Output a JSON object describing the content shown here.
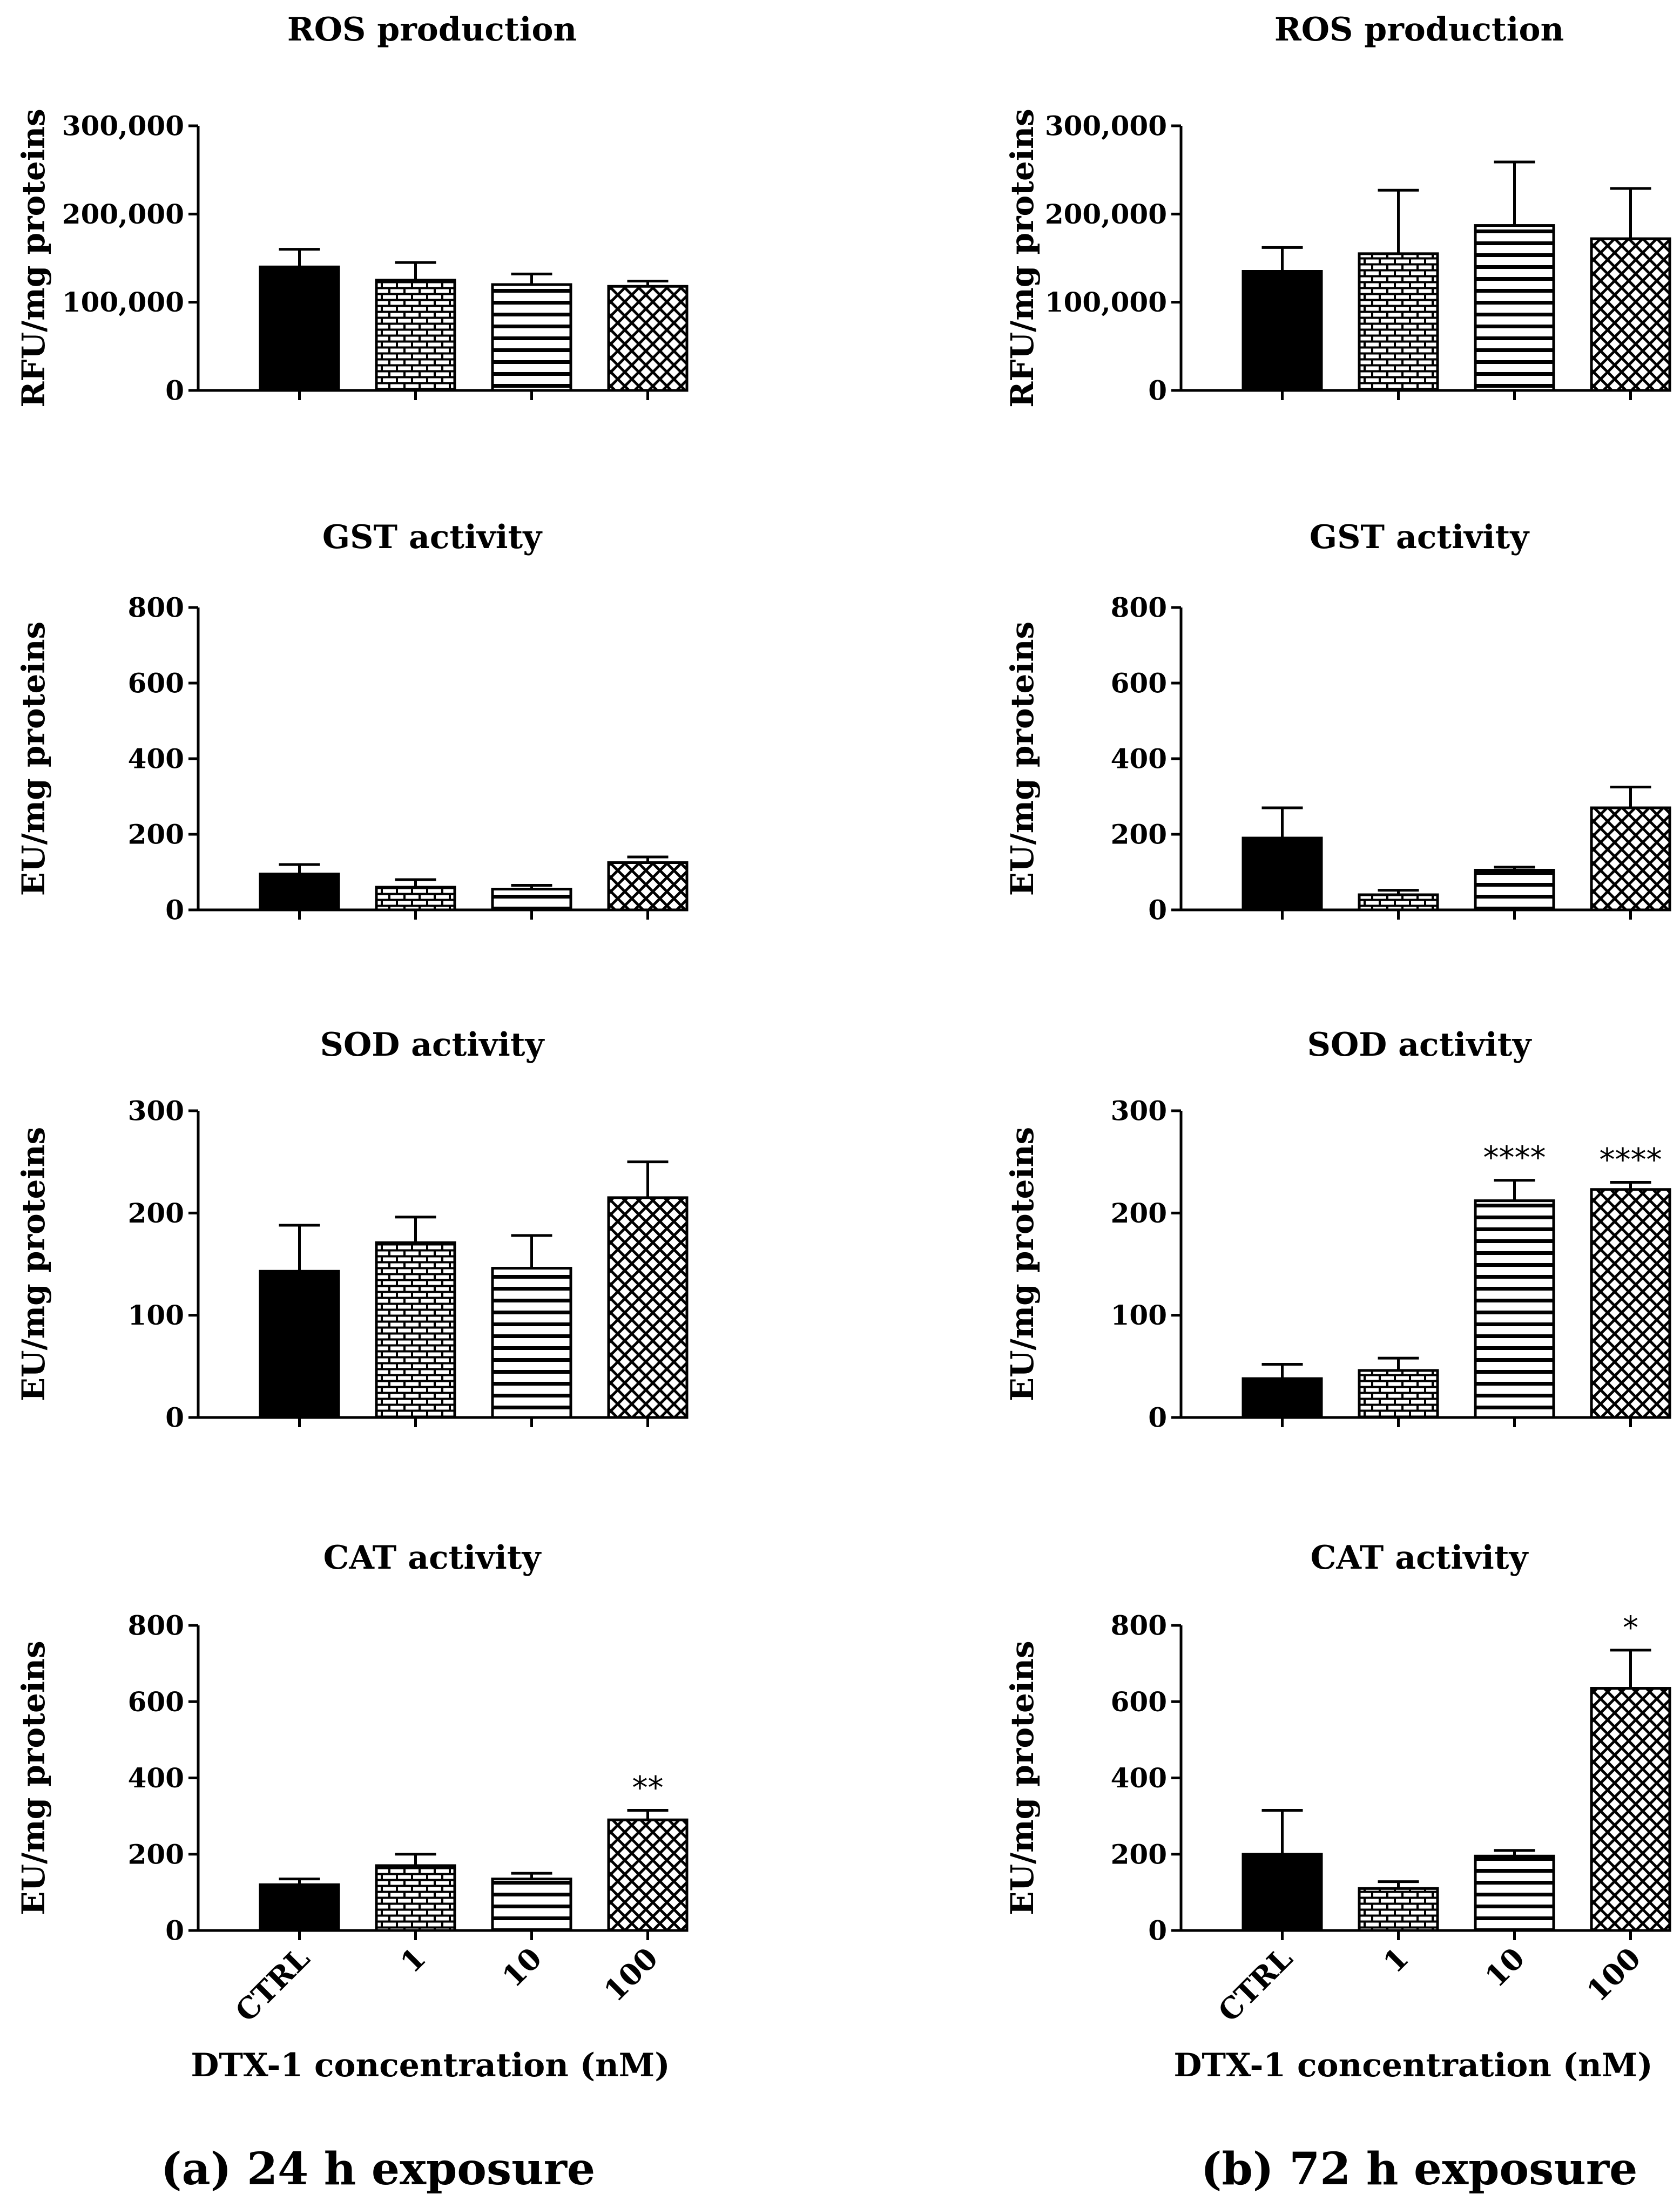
{
  "figure": {
    "panel_a_caption": "(a) 24 h exposure",
    "panel_b_caption": "(b) 72 h exposure"
  },
  "colors": {
    "bar_stroke": "#000000",
    "bar_fill": "#000000",
    "background": "#ffffff"
  },
  "chart_data": [
    {
      "id": "ros24",
      "type": "bar",
      "title": "ROS production",
      "ylabel": "RFU/mg proteins",
      "xlabel": "",
      "categories": [
        "CTRL",
        "1",
        "10",
        "100"
      ],
      "patterns": [
        "solid",
        "brick",
        "hlines",
        "crosshatch"
      ],
      "ylim": [
        0,
        300000
      ],
      "yticks": [
        "0",
        "100,000",
        "200,000",
        "300,000"
      ],
      "ytick_values": [
        0,
        100000,
        200000,
        300000
      ],
      "values": [
        140000,
        125000,
        120000,
        118000
      ],
      "errors": [
        20000,
        20000,
        12000,
        6000
      ],
      "significance": [
        "",
        "",
        "",
        ""
      ],
      "show_category_labels": false
    },
    {
      "id": "ros72",
      "type": "bar",
      "title": "ROS production",
      "ylabel": "RFU/mg proteins",
      "xlabel": "",
      "categories": [
        "CTRL",
        "1",
        "10",
        "100"
      ],
      "patterns": [
        "solid",
        "brick",
        "hlines",
        "crosshatch"
      ],
      "ylim": [
        0,
        300000
      ],
      "yticks": [
        "0",
        "100,000",
        "200,000",
        "300,000"
      ],
      "ytick_values": [
        0,
        100000,
        200000,
        300000
      ],
      "values": [
        135000,
        155000,
        187000,
        172000
      ],
      "errors": [
        27000,
        72000,
        72000,
        57000
      ],
      "significance": [
        "",
        "",
        "",
        ""
      ],
      "show_category_labels": false
    },
    {
      "id": "gst24",
      "type": "bar",
      "title": "GST activity",
      "ylabel": "EU/mg proteins",
      "xlabel": "",
      "categories": [
        "CTRL",
        "1",
        "10",
        "100"
      ],
      "patterns": [
        "solid",
        "brick",
        "hlines",
        "crosshatch"
      ],
      "ylim": [
        0,
        800
      ],
      "yticks": [
        "0",
        "200",
        "400",
        "600",
        "800"
      ],
      "ytick_values": [
        0,
        200,
        400,
        600,
        800
      ],
      "values": [
        95,
        60,
        55,
        125
      ],
      "errors": [
        25,
        20,
        10,
        15
      ],
      "significance": [
        "",
        "",
        "",
        ""
      ],
      "show_category_labels": false
    },
    {
      "id": "gst72",
      "type": "bar",
      "title": "GST activity",
      "ylabel": "EU/mg proteins",
      "xlabel": "",
      "categories": [
        "CTRL",
        "1",
        "10",
        "100"
      ],
      "patterns": [
        "solid",
        "brick",
        "hlines",
        "crosshatch"
      ],
      "ylim": [
        0,
        800
      ],
      "yticks": [
        "0",
        "200",
        "400",
        "600",
        "800"
      ],
      "ytick_values": [
        0,
        200,
        400,
        600,
        800
      ],
      "values": [
        190,
        40,
        105,
        270
      ],
      "errors": [
        80,
        12,
        8,
        55
      ],
      "significance": [
        "",
        "",
        "",
        ""
      ],
      "show_category_labels": false
    },
    {
      "id": "sod24",
      "type": "bar",
      "title": "SOD activity",
      "ylabel": "EU/mg proteins",
      "xlabel": "",
      "categories": [
        "CTRL",
        "1",
        "10",
        "100"
      ],
      "patterns": [
        "solid",
        "brick",
        "hlines",
        "crosshatch"
      ],
      "ylim": [
        0,
        300
      ],
      "yticks": [
        "0",
        "100",
        "200",
        "300"
      ],
      "ytick_values": [
        0,
        100,
        200,
        300
      ],
      "values": [
        143,
        171,
        146,
        215
      ],
      "errors": [
        45,
        25,
        32,
        35
      ],
      "significance": [
        "",
        "",
        "",
        ""
      ],
      "show_category_labels": false
    },
    {
      "id": "sod72",
      "type": "bar",
      "title": "SOD activity",
      "ylabel": "EU/mg proteins",
      "xlabel": "",
      "categories": [
        "CTRL",
        "1",
        "10",
        "100"
      ],
      "patterns": [
        "solid",
        "brick",
        "hlines",
        "crosshatch"
      ],
      "ylim": [
        0,
        300
      ],
      "yticks": [
        "0",
        "100",
        "200",
        "300"
      ],
      "ytick_values": [
        0,
        100,
        200,
        300
      ],
      "values": [
        38,
        46,
        212,
        223
      ],
      "errors": [
        14,
        12,
        20,
        7
      ],
      "significance": [
        "",
        "",
        "****",
        "****"
      ],
      "show_category_labels": false
    },
    {
      "id": "cat24",
      "type": "bar",
      "title": "CAT activity",
      "ylabel": "EU/mg proteins",
      "xlabel": "DTX-1 concentration (nM)",
      "categories": [
        "CTRL",
        "1",
        "10",
        "100"
      ],
      "patterns": [
        "solid",
        "brick",
        "hlines",
        "crosshatch"
      ],
      "ylim": [
        0,
        800
      ],
      "yticks": [
        "0",
        "200",
        "400",
        "600",
        "800"
      ],
      "ytick_values": [
        0,
        200,
        400,
        600,
        800
      ],
      "values": [
        120,
        170,
        135,
        290
      ],
      "errors": [
        15,
        30,
        15,
        25
      ],
      "significance": [
        "",
        "",
        "",
        "**"
      ],
      "show_category_labels": true
    },
    {
      "id": "cat72",
      "type": "bar",
      "title": "CAT activity",
      "ylabel": "EU/mg proteins",
      "xlabel": "DTX-1 concentration (nM)",
      "categories": [
        "CTRL",
        "1",
        "10",
        "100"
      ],
      "patterns": [
        "solid",
        "brick",
        "hlines",
        "crosshatch"
      ],
      "ylim": [
        0,
        800
      ],
      "yticks": [
        "0",
        "200",
        "400",
        "600",
        "800"
      ],
      "ytick_values": [
        0,
        200,
        400,
        600,
        800
      ],
      "values": [
        200,
        110,
        195,
        635
      ],
      "errors": [
        115,
        18,
        15,
        100
      ],
      "significance": [
        "",
        "",
        "",
        "*"
      ],
      "show_category_labels": true
    }
  ]
}
